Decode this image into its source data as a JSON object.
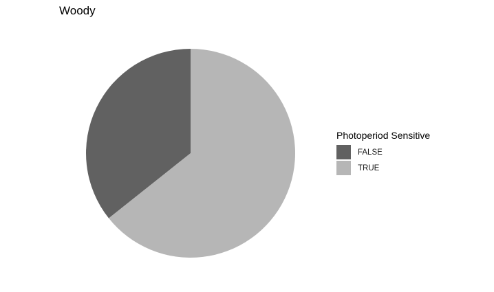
{
  "chart_data": {
    "type": "pie",
    "title": "Woody",
    "legend": {
      "title": "Photoperiod Sensitive",
      "placement": "right"
    },
    "categories": [
      "FALSE",
      "TRUE"
    ],
    "values": [
      0.357,
      0.643
    ],
    "colors": [
      "#616161",
      "#b6b6b6"
    ],
    "start": "top",
    "direction": "counterclockwise"
  }
}
